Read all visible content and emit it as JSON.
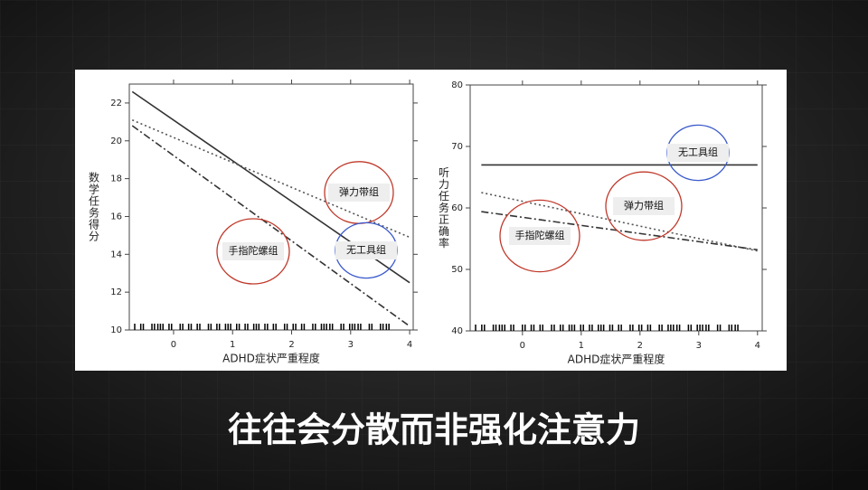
{
  "chart_data": [
    {
      "type": "line",
      "x": [
        -0.7,
        4
      ],
      "xlabel": "ADHD症状严重程度",
      "ylabel": "数学任务得分",
      "xlim": [
        -0.75,
        4.06
      ],
      "ylim": [
        10,
        23
      ],
      "xticks": [
        0,
        1,
        2,
        3,
        4
      ],
      "yticks": [
        10,
        12,
        14,
        16,
        18,
        20,
        22
      ],
      "series": [
        {
          "style": "solid",
          "color": "#333333",
          "values": [
            22.6,
            12.5
          ]
        },
        {
          "style": "dotted",
          "color": "#555555",
          "values": [
            21.1,
            14.9
          ]
        },
        {
          "style": "dashdot",
          "color": "#333333",
          "values": [
            20.8,
            10.2
          ]
        }
      ],
      "annotations": [
        {
          "text": "手指陀螺组",
          "color": "#c0392b"
        },
        {
          "text": "弹力带组",
          "color": "#c0392b"
        },
        {
          "text": "无工具组",
          "color": "#3b5bcc"
        }
      ]
    },
    {
      "type": "line",
      "x": [
        -0.7,
        4
      ],
      "xlabel": "ADHD症状严重程度",
      "ylabel": "听力任务正确率",
      "xlim": [
        -0.89,
        4.08
      ],
      "ylim": [
        40,
        80
      ],
      "xticks": [
        0,
        1,
        2,
        3,
        4
      ],
      "yticks": [
        40,
        50,
        60,
        70,
        80
      ],
      "series": [
        {
          "style": "solid",
          "color": "#333333",
          "values": [
            67,
            67
          ]
        },
        {
          "style": "dotted",
          "color": "#555555",
          "values": [
            62.5,
            53
          ]
        },
        {
          "style": "dashdot",
          "color": "#333333",
          "values": [
            59.4,
            53.2
          ]
        }
      ],
      "annotations": [
        {
          "text": "无工具组",
          "color": "#3b5bcc"
        },
        {
          "text": "弹力带组",
          "color": "#c0392b"
        },
        {
          "text": "手指陀螺组",
          "color": "#c0392b"
        }
      ]
    }
  ],
  "caption": "往往会分散而非强化注意力"
}
